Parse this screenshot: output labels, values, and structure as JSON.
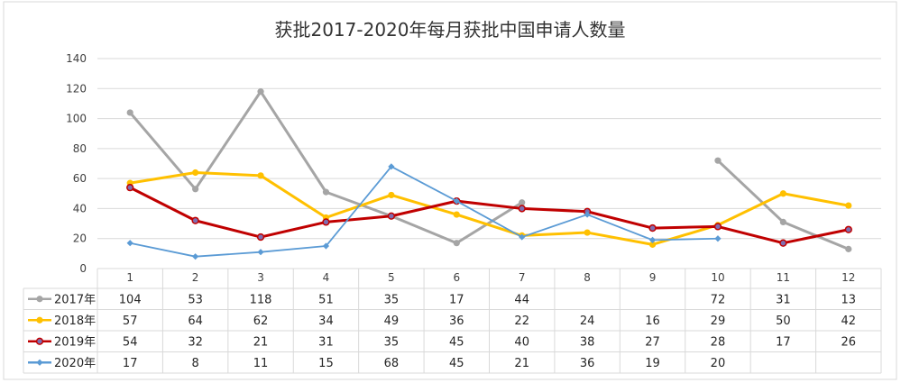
{
  "chart_data": {
    "type": "line",
    "title": "获批2017-2020年每月获批中国申请人数量",
    "categories": [
      "1",
      "2",
      "3",
      "4",
      "5",
      "6",
      "7",
      "8",
      "9",
      "10",
      "11",
      "12"
    ],
    "yticks": [
      "0",
      "20",
      "40",
      "60",
      "80",
      "100",
      "120",
      "140"
    ],
    "ylim": [
      0,
      140
    ],
    "grid": true,
    "legend": "data-table",
    "series": [
      {
        "name": "2017年",
        "color": "#a5a5a5",
        "marker": "circle",
        "values": [
          104,
          53,
          118,
          51,
          35,
          17,
          44,
          null,
          null,
          72,
          31,
          13
        ],
        "labels": [
          "104",
          "53",
          "118",
          "51",
          "35",
          "17",
          "44",
          "",
          "",
          "72",
          "31",
          "13"
        ]
      },
      {
        "name": "2018年",
        "color": "#ffc000",
        "marker": "circle",
        "values": [
          57,
          64,
          62,
          34,
          49,
          36,
          22,
          24,
          16,
          29,
          50,
          42
        ],
        "labels": [
          "57",
          "64",
          "62",
          "34",
          "49",
          "36",
          "22",
          "24",
          "16",
          "29",
          "50",
          "42"
        ]
      },
      {
        "name": "2019年",
        "color": "#c00000",
        "marker": "circle-purple",
        "values": [
          54,
          32,
          21,
          31,
          35,
          45,
          40,
          38,
          27,
          28,
          17,
          26
        ],
        "labels": [
          "54",
          "32",
          "21",
          "31",
          "35",
          "45",
          "40",
          "38",
          "27",
          "28",
          "17",
          "26"
        ]
      },
      {
        "name": "2020年",
        "color": "#5b9bd5",
        "marker": "diamond",
        "values": [
          17,
          8,
          11,
          15,
          68,
          45,
          21,
          36,
          19,
          20,
          null,
          null
        ],
        "labels": [
          "17",
          "8",
          "11",
          "15",
          "68",
          "45",
          "21",
          "36",
          "19",
          "20",
          "",
          ""
        ]
      }
    ]
  }
}
